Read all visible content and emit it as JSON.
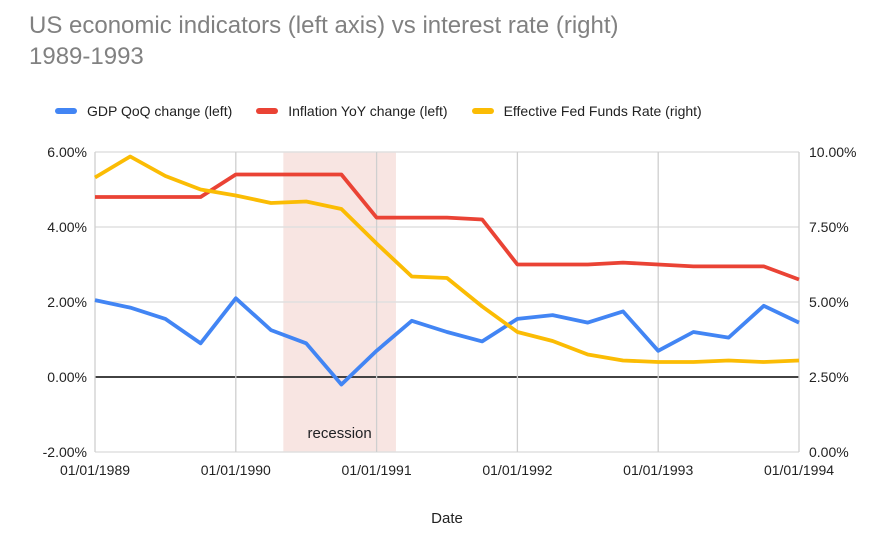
{
  "title": {
    "line1": "US economic indicators (left axis) vs interest rate (right)",
    "line2": "1989-1993",
    "color": "#818181"
  },
  "chart_data": {
    "type": "line",
    "title": "US economic indicators (left axis) vs interest rate (right) 1989-1993",
    "legend_position": "top",
    "grid": true,
    "x_axis": {
      "label": "Date",
      "ticks": [
        {
          "index": 0,
          "label": "01/01/1989"
        },
        {
          "index": 4,
          "label": "01/01/1990"
        },
        {
          "index": 8,
          "label": "01/01/1991"
        },
        {
          "index": 12,
          "label": "01/01/1992"
        },
        {
          "index": 16,
          "label": "01/01/1993"
        },
        {
          "index": 20,
          "label": "01/01/1994"
        }
      ]
    },
    "y_axis_left": {
      "min": -2,
      "max": 6,
      "ticks": [
        {
          "value": 6,
          "label": "6.00%"
        },
        {
          "value": 4,
          "label": "4.00%"
        },
        {
          "value": 2,
          "label": "2.00%"
        },
        {
          "value": 0,
          "label": "0.00%"
        },
        {
          "value": -2,
          "label": "-2.00%"
        }
      ]
    },
    "y_axis_right": {
      "min": 0,
      "max": 10,
      "ticks": [
        {
          "value": 10,
          "label": "10.00%"
        },
        {
          "value": 7.5,
          "label": "7.50%"
        },
        {
          "value": 5,
          "label": "5.00%"
        },
        {
          "value": 2.5,
          "label": "2.50%"
        },
        {
          "value": 0,
          "label": "0.00%"
        }
      ]
    },
    "categories": [
      "01/01/1989",
      "04/01/1989",
      "07/01/1989",
      "10/01/1989",
      "01/01/1990",
      "04/01/1990",
      "07/01/1990",
      "10/01/1990",
      "01/01/1991",
      "04/01/1991",
      "07/01/1991",
      "10/01/1991",
      "01/01/1992",
      "04/01/1992",
      "07/01/1992",
      "10/01/1992",
      "01/01/1993",
      "04/01/1993",
      "07/01/1993",
      "10/01/1993",
      "01/01/1994"
    ],
    "series": [
      {
        "id": "gdp",
        "name": "GDP QoQ change (left)",
        "axis": "left",
        "color": "#4285F4",
        "values": [
          2.05,
          1.85,
          1.55,
          0.9,
          2.1,
          1.25,
          0.9,
          -0.2,
          0.7,
          1.5,
          1.2,
          0.95,
          1.55,
          1.65,
          1.45,
          1.75,
          0.7,
          1.2,
          1.05,
          1.9,
          1.45
        ]
      },
      {
        "id": "inflation",
        "name": "Inflation YoY change (left)",
        "axis": "left",
        "color": "#EA4335",
        "values": [
          4.8,
          4.8,
          4.8,
          4.8,
          5.4,
          5.4,
          5.4,
          5.4,
          4.25,
          4.25,
          4.25,
          4.2,
          3.0,
          3.0,
          3.0,
          3.05,
          3.0,
          2.95,
          2.95,
          2.95,
          2.6
        ]
      },
      {
        "id": "fed-funds",
        "name": "Effective Fed Funds Rate (right)",
        "axis": "right",
        "color": "#FBBC04",
        "values": [
          9.15,
          9.85,
          9.2,
          8.75,
          8.55,
          8.3,
          8.35,
          8.1,
          6.95,
          5.85,
          5.8,
          4.85,
          4.0,
          3.7,
          3.25,
          3.05,
          3.0,
          3.0,
          3.05,
          3.0,
          3.05
        ]
      }
    ],
    "recession_band": {
      "label": "recession",
      "start_index": 5.35,
      "end_index": 8.55,
      "fill": "#F8E5E2",
      "label_color": "#202124"
    },
    "colors": {
      "gridline": "#E0E0E0",
      "vertical_gridline": "#CFCFCF",
      "zero_line": "#424242",
      "tick_label": "#222222"
    }
  }
}
